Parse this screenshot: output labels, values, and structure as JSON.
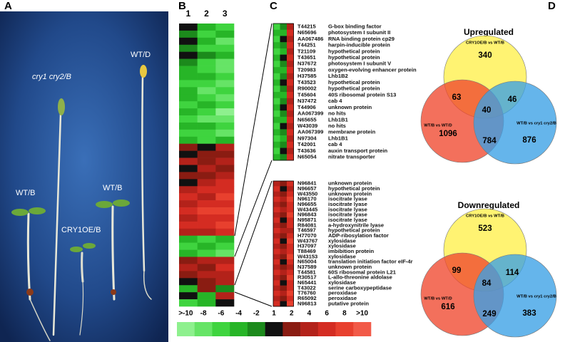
{
  "panel_a": {
    "label": "A",
    "seedlings": [
      "WT/B",
      "cry1 cry2/B",
      "CRY1OE/B",
      "WT/B",
      "WT/D"
    ]
  },
  "panel_b": {
    "label": "B",
    "columns": [
      1,
      2,
      3
    ],
    "rows": [
      [
        0,
        -4,
        -6
      ],
      [
        -2,
        -6,
        -4
      ],
      [
        0,
        -4,
        -8
      ],
      [
        -2,
        -6,
        -6
      ],
      [
        0,
        -2,
        -4
      ],
      [
        -2,
        -6,
        -8
      ],
      [
        -4,
        -6,
        -8
      ],
      [
        -4,
        -4,
        -6
      ],
      [
        -6,
        -6,
        -8
      ],
      [
        -4,
        -8,
        -6
      ],
      [
        -4,
        -6,
        -8
      ],
      [
        -6,
        -4,
        -6
      ],
      [
        -4,
        -6,
        -10
      ],
      [
        -6,
        -8,
        -8
      ],
      [
        -4,
        -4,
        -6
      ],
      [
        -6,
        -6,
        -8
      ],
      [
        -4,
        -6,
        -4
      ],
      [
        2,
        1,
        4
      ],
      [
        1,
        2,
        2
      ],
      [
        4,
        2,
        4
      ],
      [
        1,
        4,
        2
      ],
      [
        2,
        2,
        4
      ],
      [
        1,
        4,
        6
      ],
      [
        4,
        6,
        6
      ],
      [
        6,
        4,
        8
      ],
      [
        4,
        6,
        6
      ],
      [
        6,
        8,
        8
      ],
      [
        4,
        6,
        6
      ],
      [
        6,
        6,
        8
      ],
      [
        4,
        4,
        6
      ],
      [
        -4,
        -6,
        -4
      ],
      [
        -6,
        -4,
        -6
      ],
      [
        -4,
        -6,
        -8
      ],
      [
        2,
        4,
        4
      ],
      [
        4,
        2,
        6
      ],
      [
        2,
        4,
        4
      ],
      [
        1,
        2,
        4
      ],
      [
        -4,
        2,
        -2
      ],
      [
        1,
        -4,
        4
      ],
      [
        -6,
        -4,
        1
      ]
    ]
  },
  "panel_c": {
    "label": "C",
    "upper": [
      {
        "id": "T44215",
        "name": "G-box binding factor",
        "values": [
          -6,
          -2,
          4
        ]
      },
      {
        "id": "N65696",
        "name": "photosystem I subunit II",
        "values": [
          -4,
          -4,
          6
        ]
      },
      {
        "id": "AA067486",
        "name": "RNA binding protein cp29",
        "values": [
          -6,
          1,
          4
        ]
      },
      {
        "id": "T44251",
        "name": "harpin-inducible protein",
        "values": [
          -4,
          -2,
          6
        ]
      },
      {
        "id": "T21109",
        "name": "hypothetical protein",
        "values": [
          -6,
          -4,
          4
        ]
      },
      {
        "id": "T43651",
        "name": "hypothetical protein",
        "values": [
          -4,
          1,
          6
        ]
      },
      {
        "id": "N37672",
        "name": "photosystem I subunit V",
        "values": [
          -6,
          -2,
          4
        ]
      },
      {
        "id": "T20983",
        "name": "oxygen-evolving enhancer protein",
        "values": [
          -4,
          -4,
          6
        ]
      },
      {
        "id": "H37585",
        "name": "Lhb1B2",
        "values": [
          -6,
          -2,
          4
        ]
      },
      {
        "id": "T43523",
        "name": "hypothetical protein",
        "values": [
          -4,
          1,
          6
        ]
      },
      {
        "id": "R90002",
        "name": "hypothetical protein",
        "values": [
          -6,
          -2,
          4
        ]
      },
      {
        "id": "T45604",
        "name": "40S ribosomal protein S13",
        "values": [
          -4,
          -4,
          6
        ]
      },
      {
        "id": "N37472",
        "name": "cab 4",
        "values": [
          -6,
          -2,
          4
        ]
      },
      {
        "id": "T44906",
        "name": "unknown protein",
        "values": [
          -4,
          1,
          6
        ]
      },
      {
        "id": "AA067399",
        "name": "no hits",
        "values": [
          -6,
          -2,
          4
        ]
      },
      {
        "id": "N65655",
        "name": "Lhb1B1",
        "values": [
          -4,
          -4,
          6
        ]
      },
      {
        "id": "W43039",
        "name": "no hits",
        "values": [
          -6,
          1,
          4
        ]
      },
      {
        "id": "AA067399",
        "name": "membrane protein",
        "values": [
          -4,
          -2,
          6
        ]
      },
      {
        "id": "N97304",
        "name": "Lhb1B1",
        "values": [
          -6,
          -4,
          4
        ]
      },
      {
        "id": "T42001",
        "name": "cab 4",
        "values": [
          -4,
          -2,
          6
        ]
      },
      {
        "id": "T43636",
        "name": "auxin transport protein",
        "values": [
          -6,
          1,
          4
        ]
      },
      {
        "id": "N65054",
        "name": "nitrate transporter",
        "values": [
          -4,
          -2,
          6
        ]
      }
    ],
    "lower": [
      {
        "id": "N96841",
        "name": "unknown protein",
        "values": [
          4,
          2,
          6
        ]
      },
      {
        "id": "N96657",
        "name": "hypothetical protein",
        "values": [
          6,
          1,
          4
        ]
      },
      {
        "id": "W43550",
        "name": "unknown protein",
        "values": [
          4,
          2,
          6
        ]
      },
      {
        "id": "N96170",
        "name": "isocitrate lyase",
        "values": [
          6,
          4,
          8
        ]
      },
      {
        "id": "N96655",
        "name": "isocitrate lyase",
        "values": [
          4,
          2,
          6
        ]
      },
      {
        "id": "W43445",
        "name": "isocitrate lyase",
        "values": [
          6,
          4,
          6
        ]
      },
      {
        "id": "N96843",
        "name": "isocitrate lyase",
        "values": [
          4,
          2,
          8
        ]
      },
      {
        "id": "N95871",
        "name": "isocitrate lyase",
        "values": [
          6,
          1,
          6
        ]
      },
      {
        "id": "R84081",
        "name": "a-hydroxynitrile lyase",
        "values": [
          4,
          2,
          6
        ]
      },
      {
        "id": "T46597",
        "name": "hypothetical protein",
        "values": [
          6,
          4,
          4
        ]
      },
      {
        "id": "H77070",
        "name": "ADP-ribosylation factor",
        "values": [
          4,
          2,
          6
        ]
      },
      {
        "id": "W43767",
        "name": "xylosidase",
        "values": [
          6,
          1,
          8
        ]
      },
      {
        "id": "H37097",
        "name": "xylosidase",
        "values": [
          4,
          2,
          6
        ]
      },
      {
        "id": "T88469",
        "name": "imbibition protein",
        "values": [
          6,
          4,
          6
        ]
      },
      {
        "id": "W43153",
        "name": "xylosidase",
        "values": [
          4,
          2,
          8
        ]
      },
      {
        "id": "N65004",
        "name": "translation initiation factor eIF-4r",
        "values": [
          6,
          1,
          6
        ]
      },
      {
        "id": "N37589",
        "name": "unknown protein",
        "values": [
          4,
          2,
          4
        ]
      },
      {
        "id": "T44581",
        "name": "60S ribosomal protein L21",
        "values": [
          6,
          4,
          6
        ]
      },
      {
        "id": "R30517",
        "name": "L-allo-threonine aldolase",
        "values": [
          4,
          2,
          8
        ]
      },
      {
        "id": "N65441",
        "name": "xylosidase",
        "values": [
          6,
          1,
          6
        ]
      },
      {
        "id": "T43022",
        "name": "serine carboxypeptidase",
        "values": [
          4,
          2,
          6
        ]
      },
      {
        "id": "T76760",
        "name": "peroxidase",
        "values": [
          6,
          4,
          8
        ]
      },
      {
        "id": "R65092",
        "name": "peroxidase",
        "values": [
          4,
          2,
          6
        ]
      },
      {
        "id": "N96813",
        "name": "putative protein",
        "values": [
          6,
          1,
          8
        ]
      }
    ]
  },
  "scale": {
    "ticks": [
      {
        "value": -10,
        "label": ">-10"
      },
      -8,
      -6,
      -4,
      -2,
      1,
      2,
      4,
      6,
      8,
      {
        "value": 10,
        "label": ">10"
      }
    ],
    "colors": [
      "#8ef08e",
      "#66e466",
      "#3fd43f",
      "#27b527",
      "#1c8a1c",
      "#111111",
      "#8a1c12",
      "#b3221a",
      "#d42c22",
      "#e8402e",
      "#f25a48"
    ]
  },
  "panel_d": {
    "label": "D",
    "venns": [
      {
        "title": "Upregulated",
        "sets": [
          "CRY1OE/B vs WT/B",
          "WT/B vs WT/D",
          "WT/B vs cry1 cry2/B"
        ],
        "counts": [
          340,
          63,
          46,
          40,
          1096,
          784,
          876
        ]
      },
      {
        "title": "Downregulated",
        "sets": [
          "CRY1OE/B vs WT/B",
          "WT/B vs WT/D",
          "WT/B vs cry1 cry2/B"
        ],
        "counts": [
          523,
          99,
          114,
          84,
          616,
          249,
          383
        ]
      }
    ]
  }
}
